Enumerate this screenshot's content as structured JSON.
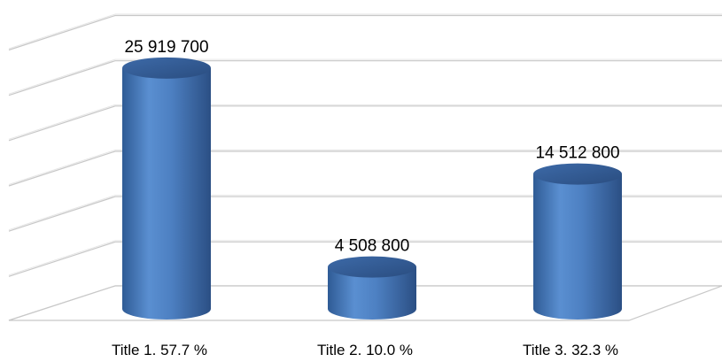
{
  "chart_data": {
    "type": "bar",
    "categories": [
      "Title 1. 57.7 %",
      "Title 2. 10.0 %",
      "Title 3. 32.3 %"
    ],
    "values": [
      25919700,
      4508800,
      14512800
    ],
    "value_labels": [
      "25 919 700",
      "4 508 800",
      "14 512 800"
    ],
    "title": "",
    "xlabel": "",
    "ylabel": "",
    "ylim": [
      0,
      30000000
    ],
    "grid": true,
    "legend": "none",
    "style": "3d-cylinder",
    "colors": {
      "bar": "#4a7ebf",
      "bar_dark": "#2b4f84",
      "bar_light": "#7ea6dc",
      "grid": "#c8c8c8"
    }
  }
}
